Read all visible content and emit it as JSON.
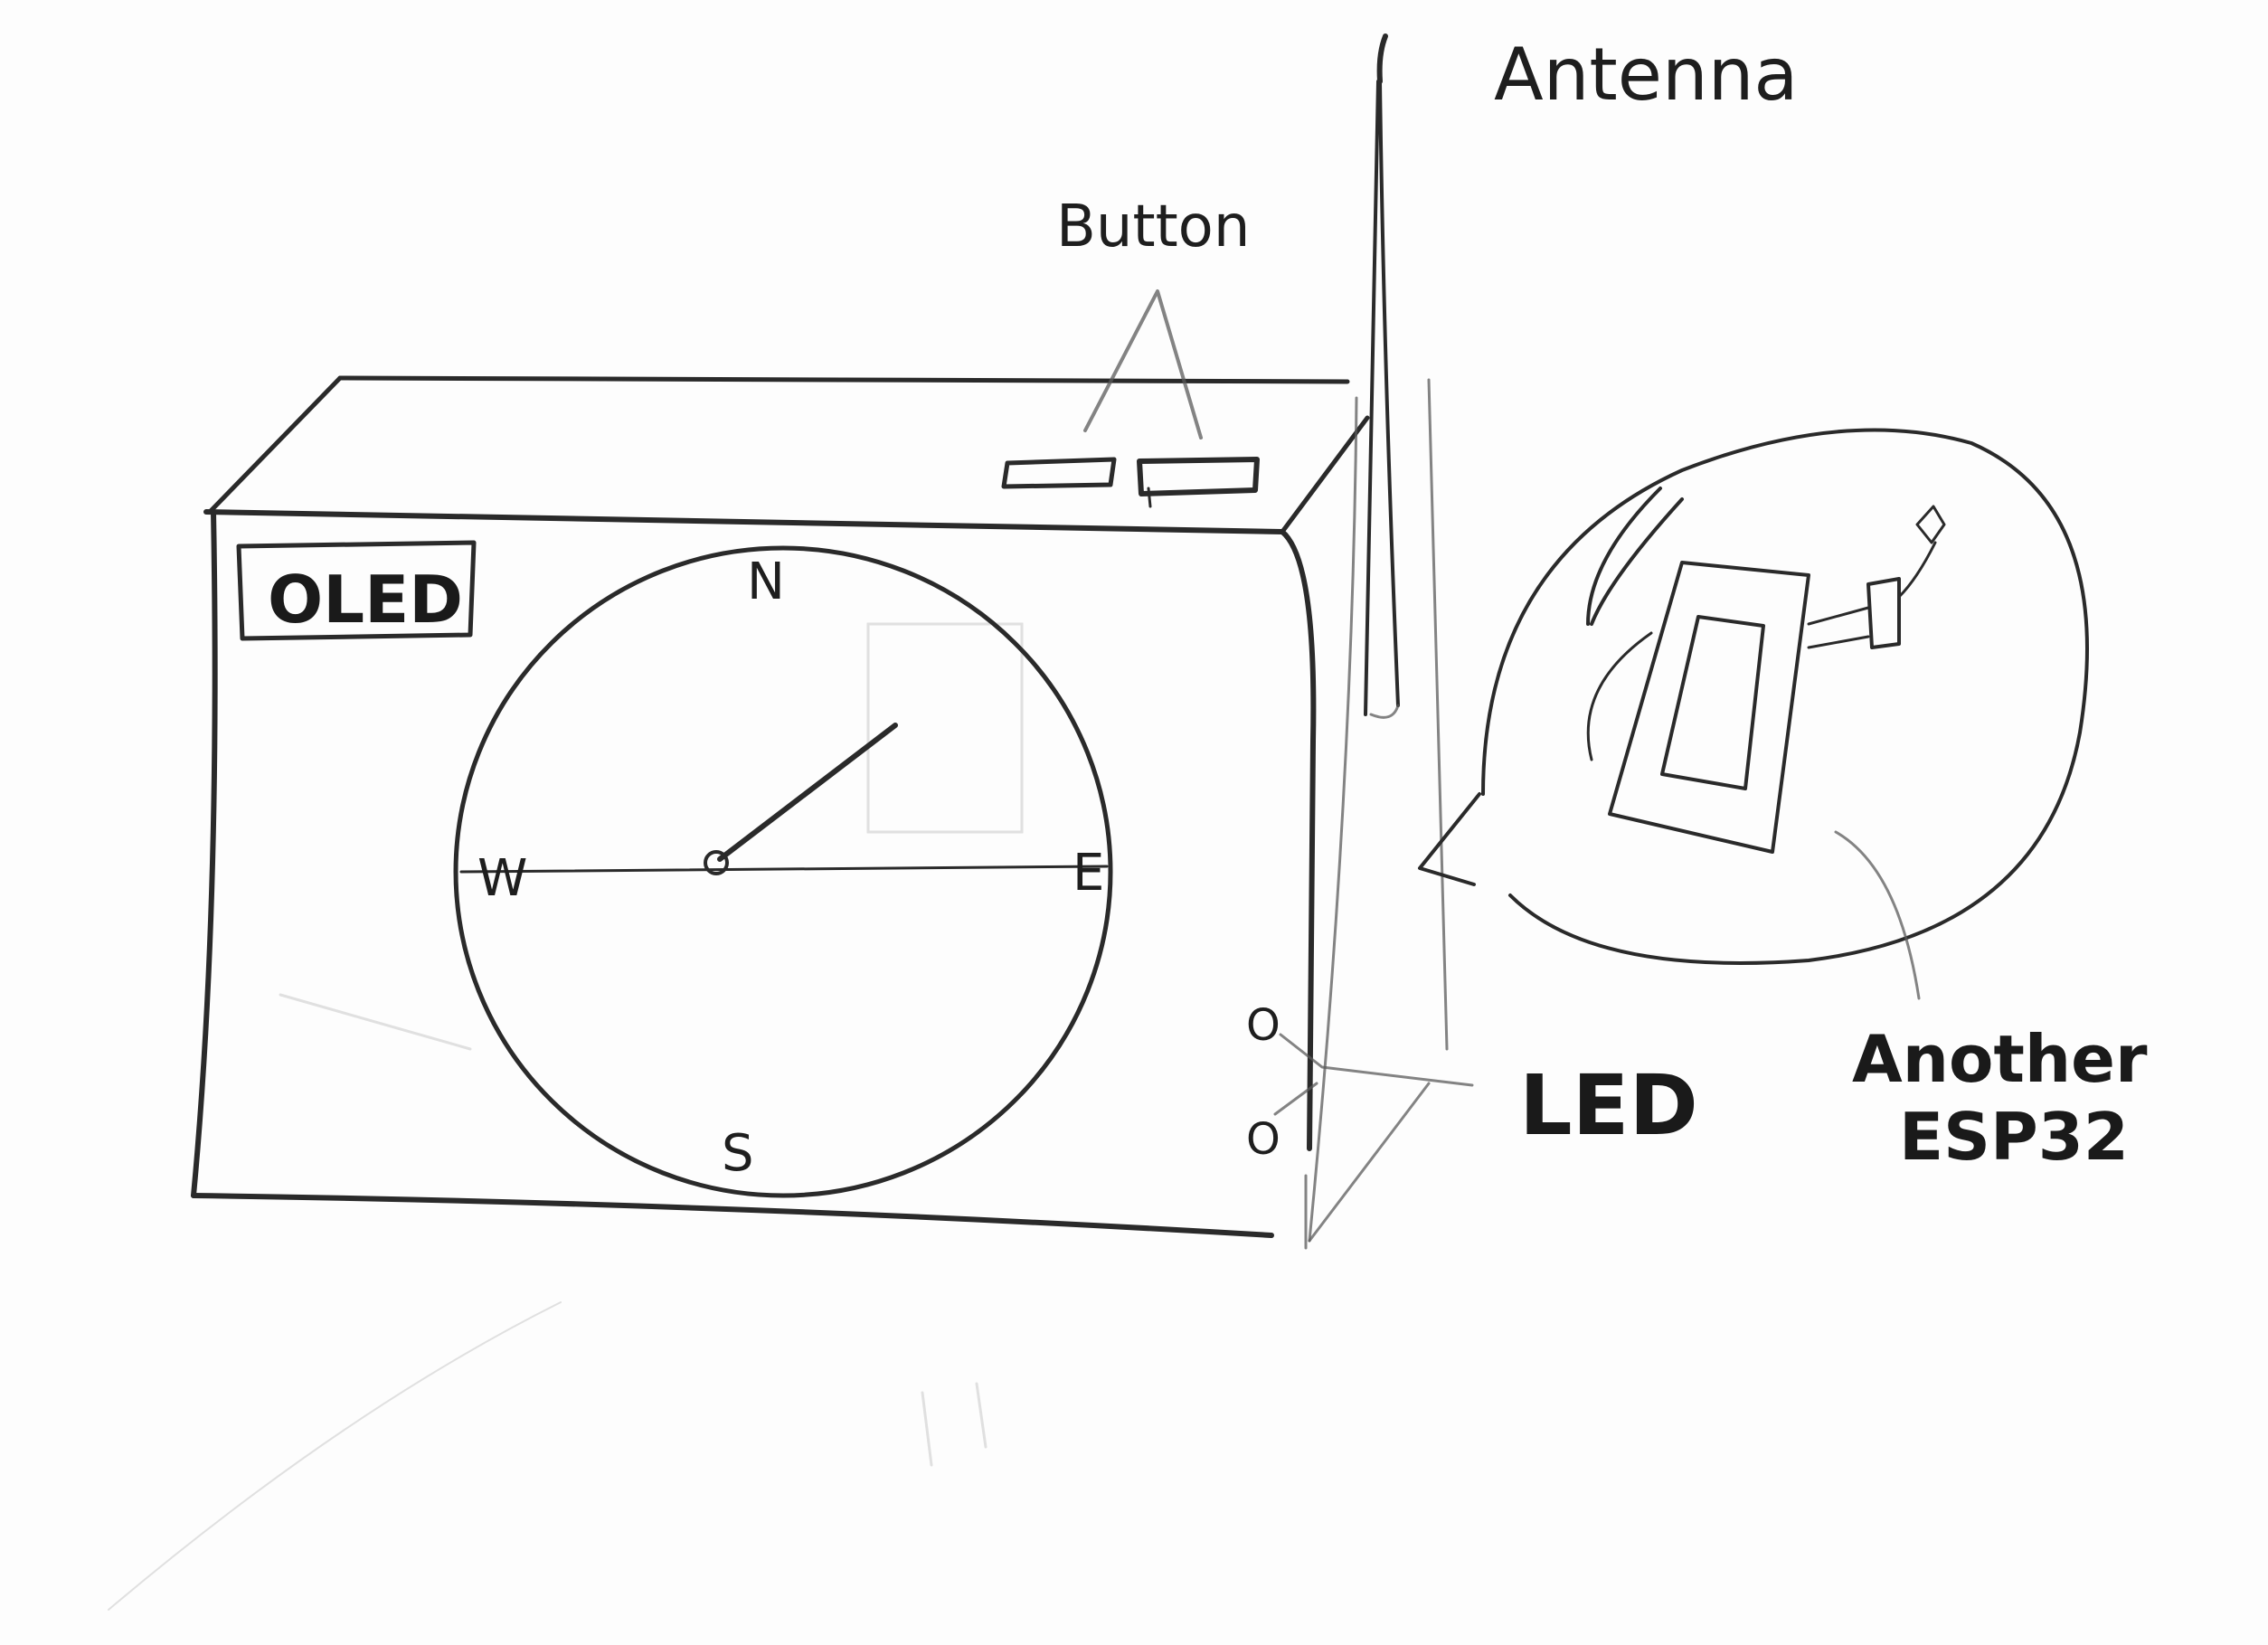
{
  "labels": {
    "oled": "OLED",
    "button": "Button",
    "antenna": "Antenna",
    "led": "LED",
    "another_line1": "Another",
    "another_line2": "ESP32"
  },
  "compass": {
    "north": "N",
    "south": "S",
    "east": "E",
    "west": "W"
  },
  "led_markers": [
    "O",
    "O"
  ],
  "colors": {
    "pencil": "#2a2a2a",
    "paper": "#fdfdfd"
  }
}
